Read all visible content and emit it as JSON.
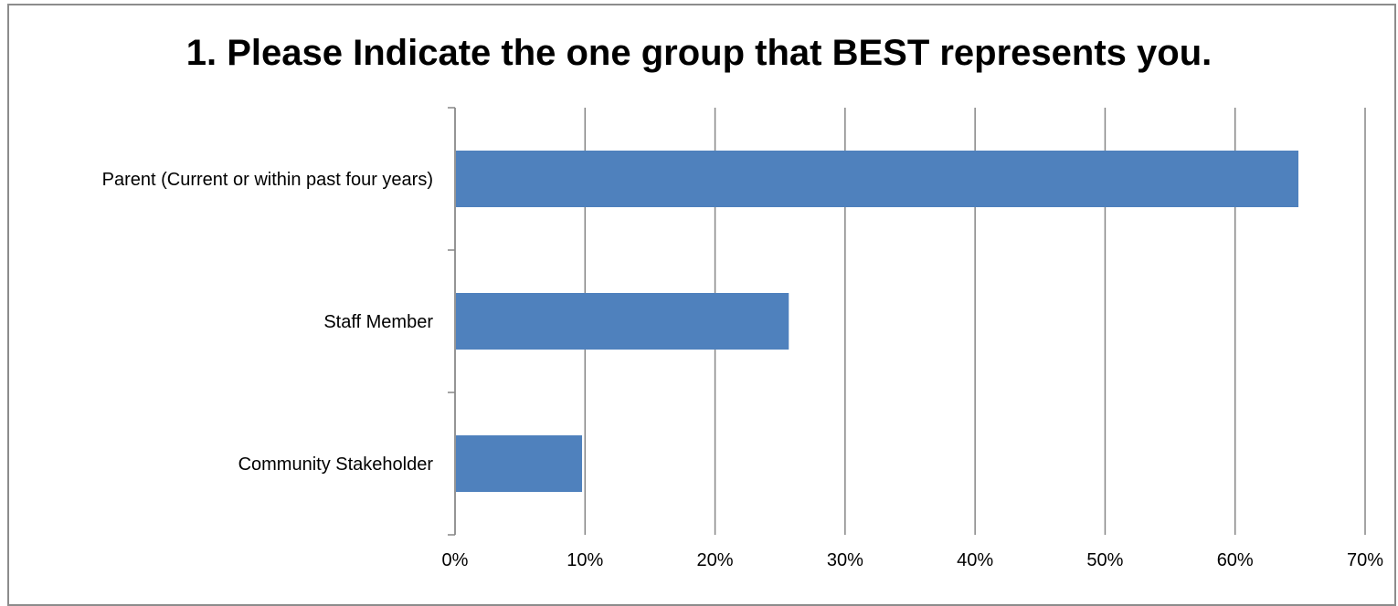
{
  "chart_data": {
    "type": "bar",
    "orientation": "horizontal",
    "title": "1.  Please Indicate the one group that BEST represents you.",
    "categories": [
      "Parent (Current or within past four years)",
      "Staff Member",
      "Community Stakeholder"
    ],
    "values": [
      64.8,
      25.6,
      9.7
    ],
    "value_unit": "%",
    "xlim": [
      0,
      70
    ],
    "xticks": [
      "0%",
      "10%",
      "20%",
      "30%",
      "40%",
      "50%",
      "60%",
      "70%"
    ],
    "xtick_values": [
      0,
      10,
      20,
      30,
      40,
      50,
      60,
      70
    ],
    "xlabel": "",
    "ylabel": "",
    "grid": "vertical",
    "legend": "none",
    "bar_color": "#4f81bd",
    "grid_color": "#868686"
  }
}
